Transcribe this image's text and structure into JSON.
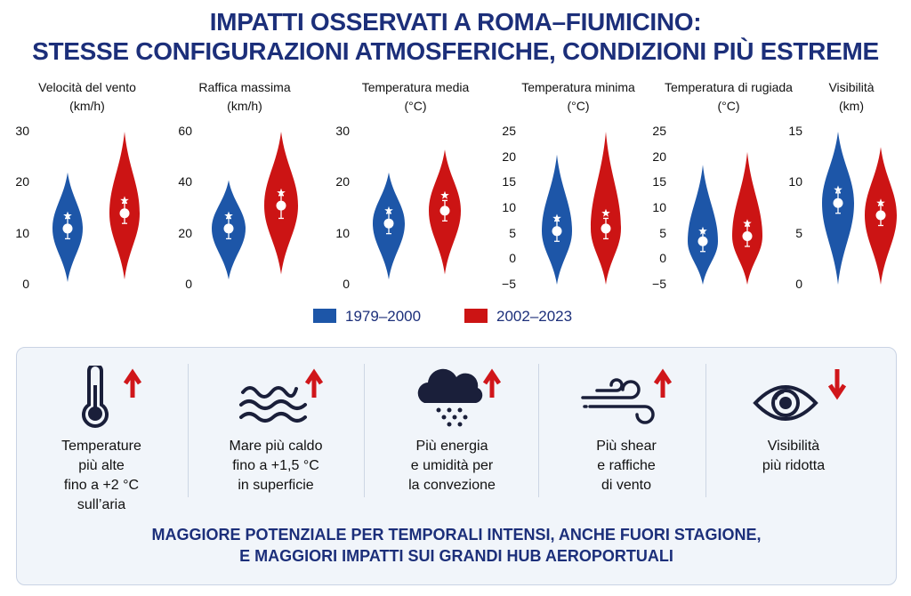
{
  "title": {
    "line1": "IMPATTI OSSERVATI A ROMA–FIUMICINO:",
    "line2": "STESSE CONFIGURAZIONI ATMOSFERICHE, CONDIZIONI PIÙ ESTREME"
  },
  "chart_data": [
    {
      "type": "violin",
      "title_line1": "Velocità del vento",
      "title_line2": "(km/h)",
      "ylim": [
        0,
        30
      ],
      "yticks": [
        "0",
        "10",
        "20",
        "30"
      ],
      "series": [
        {
          "name": "1979–2000",
          "median": 11,
          "q1": 9,
          "q3": 13,
          "low": 0.5,
          "high": 22,
          "mean": 13.5
        },
        {
          "name": "2002–2023",
          "median": 14,
          "q1": 12,
          "q3": 16,
          "low": 1,
          "high": 30,
          "mean": 16.5
        }
      ]
    },
    {
      "type": "violin",
      "title_line1": "Raffica massima",
      "title_line2": "(km/h)",
      "ylim": [
        0,
        60
      ],
      "yticks": [
        "0",
        "20",
        "40",
        "60"
      ],
      "series": [
        {
          "name": "1979–2000",
          "median": 22,
          "q1": 18,
          "q3": 26,
          "low": 2,
          "high": 41,
          "mean": 27
        },
        {
          "name": "2002–2023",
          "median": 31,
          "q1": 26,
          "q3": 35,
          "low": 4,
          "high": 60,
          "mean": 36
        }
      ]
    },
    {
      "type": "violin",
      "title_line1": "Temperatura media",
      "title_line2": "(°C)",
      "ylim": [
        0,
        30
      ],
      "yticks": [
        "0",
        "10",
        "20",
        "30"
      ],
      "series": [
        {
          "name": "1979–2000",
          "median": 12,
          "q1": 10,
          "q3": 14,
          "low": 1,
          "high": 22,
          "mean": 14.5
        },
        {
          "name": "2002–2023",
          "median": 14.5,
          "q1": 12.5,
          "q3": 16.5,
          "low": 2,
          "high": 26.5,
          "mean": 17.5
        }
      ]
    },
    {
      "type": "violin",
      "title_line1": "Temperatura minima",
      "title_line2": "(°C)",
      "ylim": [
        -5,
        25
      ],
      "yticks": [
        "−5",
        "0",
        "5",
        "10",
        "15",
        "20",
        "25"
      ],
      "series": [
        {
          "name": "1979–2000",
          "median": 5.5,
          "q1": 3.5,
          "q3": 7.5,
          "low": -5,
          "high": 20.5,
          "mean": 8
        },
        {
          "name": "2002–2023",
          "median": 6,
          "q1": 4,
          "q3": 8,
          "low": -5,
          "high": 25,
          "mean": 9
        }
      ]
    },
    {
      "type": "violin",
      "title_line1": "Temperatura di rugiada",
      "title_line2": "(°C)",
      "ylim": [
        -5,
        25
      ],
      "yticks": [
        "−5",
        "0",
        "5",
        "10",
        "15",
        "20",
        "25"
      ],
      "series": [
        {
          "name": "1979–2000",
          "median": 3.5,
          "q1": 1.5,
          "q3": 5.5,
          "low": -5,
          "high": 18.5,
          "mean": 5.5
        },
        {
          "name": "2002–2023",
          "median": 4.5,
          "q1": 2.5,
          "q3": 6.5,
          "low": -5,
          "high": 21,
          "mean": 7
        }
      ]
    },
    {
      "type": "violin",
      "title_line1": "Visibilità",
      "title_line2": "(km)",
      "ylim": [
        0,
        15
      ],
      "yticks": [
        "0",
        "5",
        "10",
        "15"
      ],
      "series": [
        {
          "name": "1979–2000",
          "median": 8,
          "q1": 7,
          "q3": 9,
          "low": 0,
          "high": 15,
          "mean": 9.3
        },
        {
          "name": "2002–2023",
          "median": 6.8,
          "q1": 5.8,
          "q3": 7.8,
          "low": 0,
          "high": 13.5,
          "mean": 8
        }
      ]
    }
  ],
  "legend": [
    {
      "label": "1979–2000",
      "color": "#1d56a8"
    },
    {
      "label": "2002–2023",
      "color": "#cc1414"
    }
  ],
  "impacts": [
    {
      "icon": "thermometer-icon",
      "arrow": "up",
      "lines": [
        "Temperature",
        "più alte",
        "fino a +2 °C",
        "sull’aria"
      ]
    },
    {
      "icon": "waves-icon",
      "arrow": "up",
      "lines": [
        "Mare più caldo",
        "fino a +1,5 °C",
        "in superficie"
      ]
    },
    {
      "icon": "storm-cloud-icon",
      "arrow": "up",
      "lines": [
        "Più energia",
        "e umidità per",
        "la convezione"
      ]
    },
    {
      "icon": "wind-icon",
      "arrow": "up",
      "lines": [
        "Più shear",
        "e raffiche",
        "di vento"
      ]
    },
    {
      "icon": "eye-icon",
      "arrow": "down",
      "lines": [
        "Visibilità",
        "più ridotta"
      ]
    }
  ],
  "footer": {
    "line1": "MAGGIORE POTENZIALE PER TEMPORALI INTENSI, ANCHE FUORI STAGIONE,",
    "line2": "E MAGGIORI IMPATTI SUI GRANDI HUB AEROPORTUALI"
  },
  "colors": {
    "blue": "#1d56a8",
    "red": "#cc1414",
    "navy": "#1c2f7a",
    "arrow": "#d0161a"
  }
}
